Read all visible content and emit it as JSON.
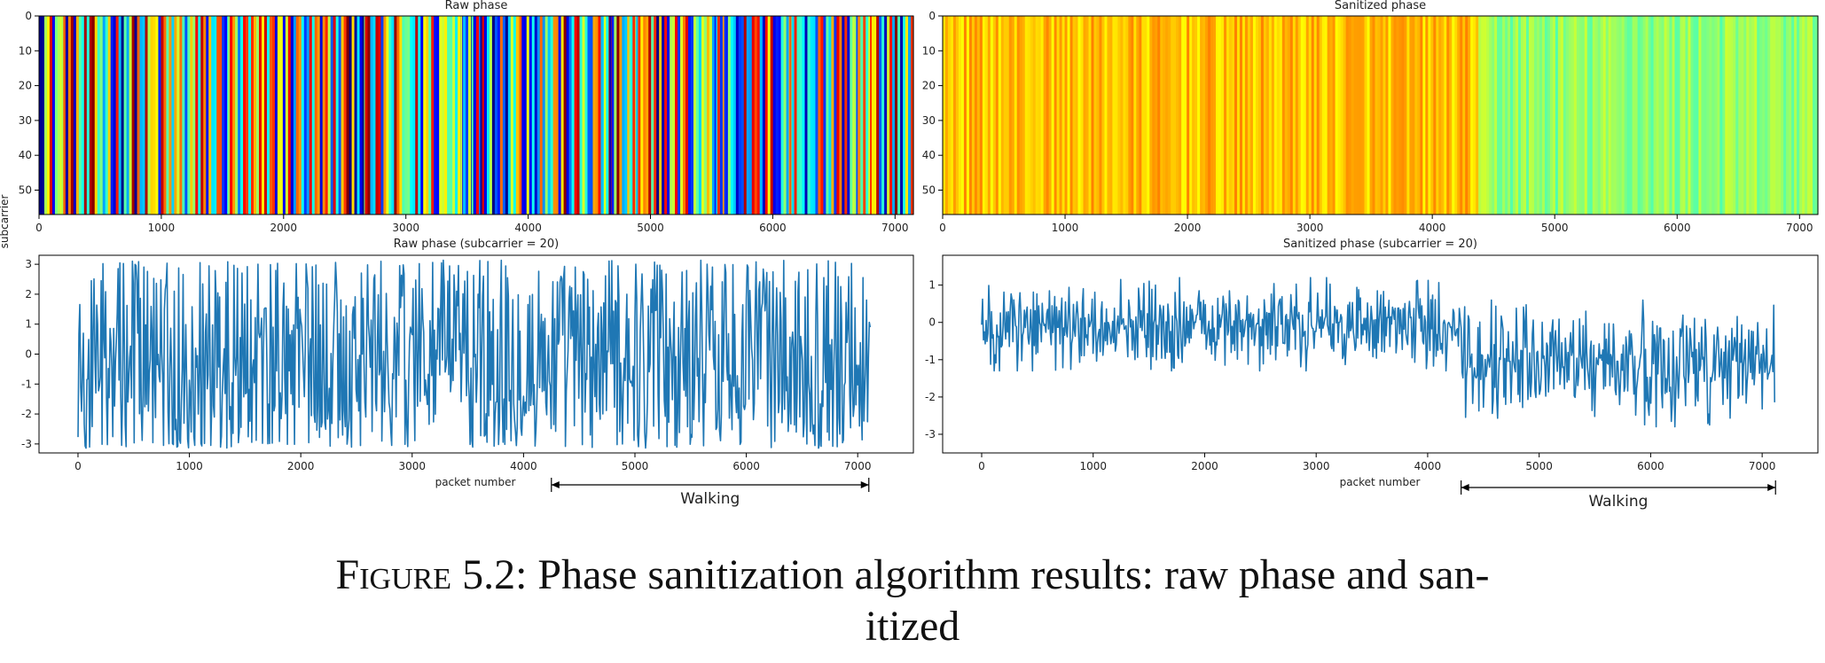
{
  "figure": {
    "caption_label": "Figure 5.2:",
    "caption_line1": "Phase sanitization algorithm results: raw phase and san-",
    "caption_line2": "itized"
  },
  "chart_data": [
    {
      "type": "heatmap",
      "title": "Raw phase",
      "xlabel": "",
      "ylabel": "subcarrier",
      "xlim": [
        0,
        7150
      ],
      "ylim": [
        57,
        0
      ],
      "xticks": [
        0,
        1000,
        2000,
        3000,
        4000,
        5000,
        6000,
        7000
      ],
      "yticks": [
        0,
        10,
        20,
        30,
        40,
        50
      ],
      "value_range": [
        -3.14,
        3.14
      ],
      "colormap": "jet",
      "grid": false
    },
    {
      "type": "heatmap",
      "title": "Sanitized phase",
      "xlabel": "",
      "ylabel": "",
      "xlim": [
        0,
        7150
      ],
      "ylim": [
        57,
        0
      ],
      "xticks": [
        0,
        1000,
        2000,
        3000,
        4000,
        5000,
        6000,
        7000
      ],
      "yticks": [
        0,
        10,
        20,
        30,
        40,
        50
      ],
      "value_range": [
        -3.14,
        3.14
      ],
      "colormap": "jet",
      "grid": false
    },
    {
      "type": "line",
      "title": "Raw phase (subcarrier = 20)",
      "xlabel": "packet number",
      "ylabel": "",
      "xlim": [
        -350,
        7500
      ],
      "ylim": [
        -3.3,
        3.3
      ],
      "xticks": [
        0,
        1000,
        2000,
        3000,
        4000,
        5000,
        6000,
        7000
      ],
      "yticks": [
        -3,
        -2,
        -1,
        0,
        1,
        2,
        3
      ],
      "series": [
        {
          "color": "#1f77b4",
          "x": [
            0,
            7120
          ],
          "segments": [
            {
              "x_start": 0,
              "x_end": 7120,
              "mean": 0.0,
              "low": -3.14,
              "high": 3.14
            }
          ]
        }
      ],
      "annotation": {
        "label": "Walking",
        "x_start": 4250,
        "x_end": 7100
      },
      "grid": false
    },
    {
      "type": "line",
      "title": "Sanitized phase (subcarrier = 20)",
      "xlabel": "packet number",
      "ylabel": "",
      "xlim": [
        -350,
        7500
      ],
      "ylim": [
        -3.5,
        1.8
      ],
      "xticks": [
        0,
        1000,
        2000,
        3000,
        4000,
        5000,
        6000,
        7000
      ],
      "yticks": [
        -3,
        -2,
        -1,
        0,
        1
      ],
      "series": [
        {
          "color": "#1f77b4",
          "x": [
            0,
            7120
          ],
          "segments": [
            {
              "x_start": 0,
              "x_end": 4300,
              "mean": -0.1,
              "low": -1.3,
              "high": 1.2
            },
            {
              "x_start": 4300,
              "x_end": 7120,
              "mean": -1.1,
              "low": -2.8,
              "high": 0.6
            }
          ]
        }
      ],
      "annotation": {
        "label": "Walking",
        "x_start": 4300,
        "x_end": 7120
      },
      "grid": false
    }
  ]
}
